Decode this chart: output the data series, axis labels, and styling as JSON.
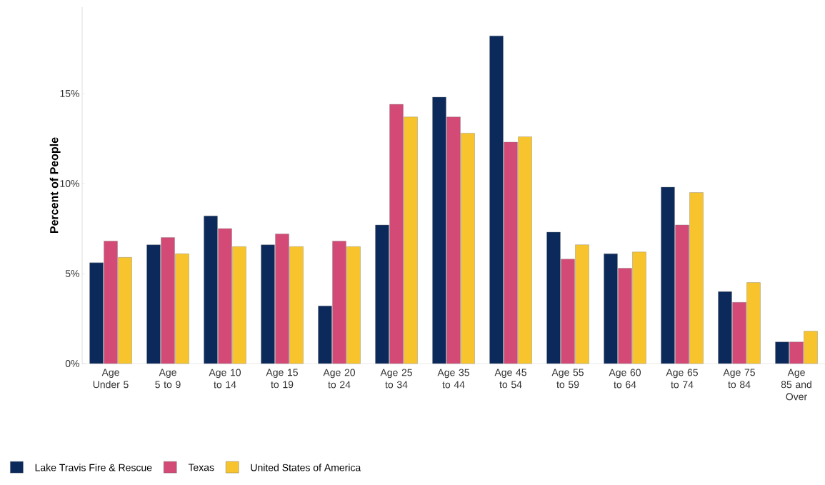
{
  "chart_data": {
    "type": "bar",
    "ylabel": "Percent of People",
    "categories": [
      "Age Under 5",
      "Age 5 to 9",
      "Age 10 to 14",
      "Age 15 to 19",
      "Age 20 to 24",
      "Age 25 to 34",
      "Age 35 to 44",
      "Age 45 to 54",
      "Age 55 to 59",
      "Age 60 to 64",
      "Age 65 to 74",
      "Age 75 to 84",
      "Age 85 and Over"
    ],
    "series": [
      {
        "name": "Lake Travis Fire & Rescue",
        "color": "#0b2a5b",
        "values": [
          5.6,
          6.6,
          8.2,
          6.6,
          3.2,
          7.7,
          14.8,
          18.2,
          7.3,
          6.1,
          9.8,
          4.0,
          1.2
        ]
      },
      {
        "name": "Texas",
        "color": "#d34a76",
        "values": [
          6.8,
          7.0,
          7.5,
          7.2,
          6.8,
          14.4,
          13.7,
          12.3,
          5.8,
          5.3,
          7.7,
          3.4,
          1.2
        ]
      },
      {
        "name": "United States of America",
        "color": "#f7c42d",
        "values": [
          5.9,
          6.1,
          6.5,
          6.5,
          6.5,
          13.7,
          12.8,
          12.6,
          6.6,
          6.2,
          9.5,
          4.5,
          1.8
        ]
      }
    ],
    "ylim": [
      0,
      19.8
    ],
    "yticks": [
      {
        "value": 0,
        "label": "0%"
      },
      {
        "value": 5,
        "label": "5%"
      },
      {
        "value": 10,
        "label": "10%"
      },
      {
        "value": 15,
        "label": "15%"
      }
    ],
    "grid": false,
    "legend": "bottom left"
  }
}
